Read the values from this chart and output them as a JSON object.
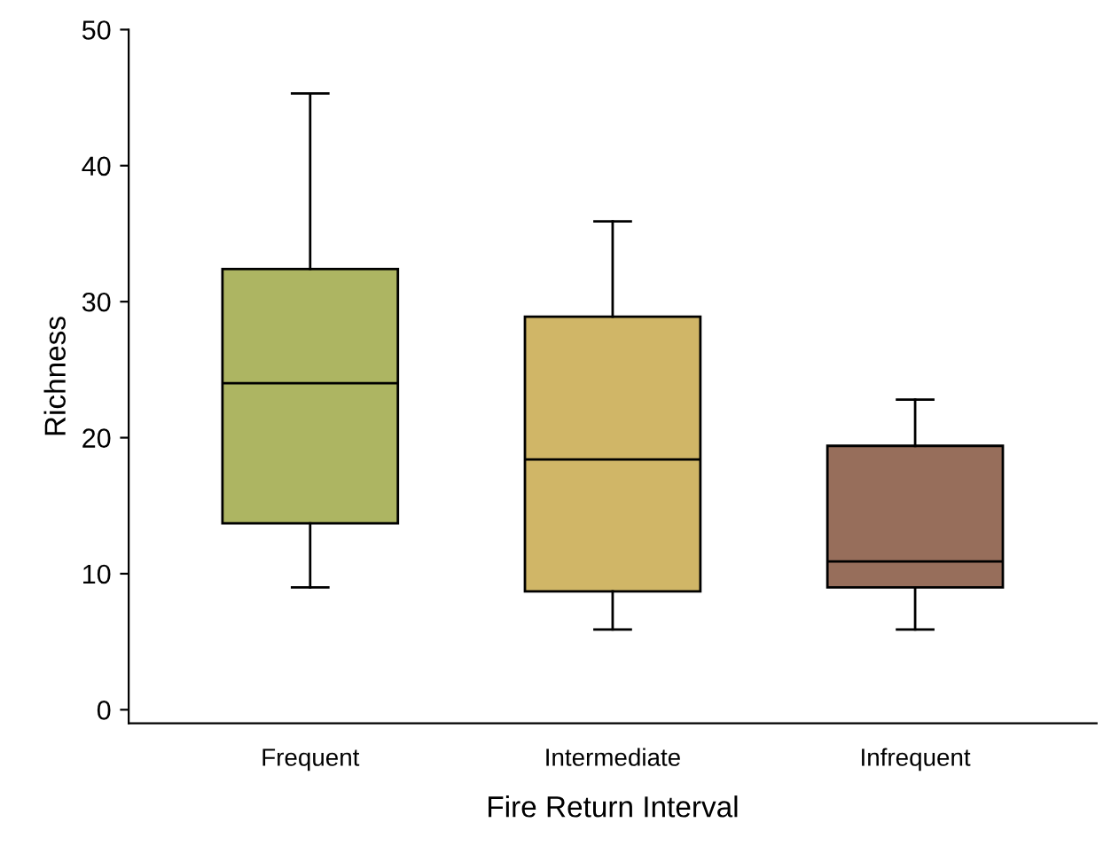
{
  "chart_data": {
    "type": "box",
    "xlabel": "Fire Return Interval",
    "ylabel": "Richness",
    "categories": [
      "Frequent",
      "Intermediate",
      "Infrequent"
    ],
    "colors": [
      "#adb562",
      "#d0b667",
      "#976e5b"
    ],
    "boxes": [
      {
        "low": 9.0,
        "q1": 13.7,
        "median": 24.0,
        "q3": 32.4,
        "high": 45.3
      },
      {
        "low": 5.9,
        "q1": 8.7,
        "median": 18.4,
        "q3": 28.9,
        "high": 35.9
      },
      {
        "low": 5.9,
        "q1": 9.0,
        "median": 10.9,
        "q3": 19.4,
        "high": 22.8
      }
    ],
    "ylim": [
      -1,
      50
    ],
    "yticks": [
      0,
      10,
      20,
      30,
      40,
      50
    ],
    "grid": false
  }
}
